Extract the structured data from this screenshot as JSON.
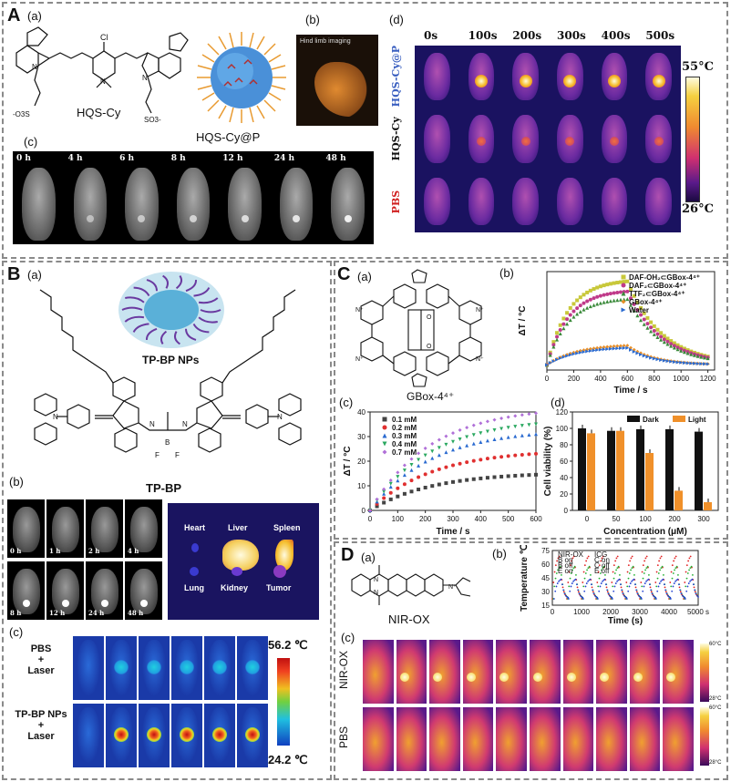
{
  "panelA": {
    "label": "A",
    "sub_a": "(a)",
    "sub_b": "(b)",
    "sub_c": "(c)",
    "sub_d": "(d)",
    "molecule_name": "HQS-Cy",
    "nanoparticle_name": "HQS-Cy@P",
    "cl": "Cl",
    "so3_left": "-O3S",
    "so3_right": "SO3-",
    "hind_limb": "Hind limb imaging",
    "c_times": [
      "0 h",
      "4 h",
      "6 h",
      "8 h",
      "12 h",
      "24 h",
      "48 h"
    ],
    "d_times": [
      "0s",
      "100s",
      "200s",
      "300s",
      "400s",
      "500s"
    ],
    "d_rows": [
      "HQS-Cy@P",
      "HQS-Cy",
      "PBS"
    ],
    "d_row_colors": [
      "#3a5fc0",
      "#111111",
      "#d02020"
    ],
    "d_scale_max": "55°C",
    "d_scale_min": "26°C"
  },
  "panelB": {
    "label": "B",
    "sub_a": "(a)",
    "sub_b": "(b)",
    "sub_c": "(c)",
    "np_name": "TP-BP NPs",
    "molecule_name": "TP-BP",
    "b_times": [
      "0 h",
      "1 h",
      "2 h",
      "4 h",
      "8 h",
      "12 h",
      "24 h",
      "48 h"
    ],
    "organs": [
      "Heart",
      "Liver",
      "Spleen",
      "Lung",
      "Kidney",
      "Tumor"
    ],
    "c_rows": [
      "PBS\n+\nLaser",
      "TP-BP NPs\n+\nLaser"
    ],
    "c_scale_max": "56.2 ℃",
    "c_scale_min": "24.2 ℃"
  },
  "panelC": {
    "label": "C",
    "sub_a": "(a)",
    "sub_b": "(b)",
    "sub_c": "(c)",
    "sub_d": "(d)",
    "molecule_name": "GBox-4⁴⁺",
    "chart_b": {
      "type": "scatter",
      "xlabel": "Time / s",
      "ylabel": "ΔT / °C",
      "xticks": [
        "0",
        "200",
        "400",
        "600",
        "800",
        "1000",
        "1200"
      ],
      "xlim": [
        0,
        1250
      ],
      "ylim": [
        -2,
        36
      ],
      "series": [
        {
          "name": "DAF-OH₂⊂GBox-4⁴⁺",
          "color": "#c8c83a",
          "marker": "square"
        },
        {
          "name": "DAF₂⊂GBox-4⁴⁺",
          "color": "#c03a8a",
          "marker": "circle"
        },
        {
          "name": "TTF₂⊂GBox-4⁴⁺",
          "color": "#3a8a3a",
          "marker": "triangle"
        },
        {
          "name": "GBox-4⁴⁺",
          "color": "#e8902a",
          "marker": "diamond"
        },
        {
          "name": "Water",
          "color": "#2a6ad0",
          "marker": "triangle-right"
        }
      ]
    },
    "chart_c": {
      "type": "scatter",
      "xlabel": "Time / s",
      "ylabel": "ΔT / °C",
      "xticks": [
        "0",
        "100",
        "200",
        "300",
        "400",
        "500",
        "600"
      ],
      "yticks": [
        "0",
        "10",
        "20",
        "30",
        "40"
      ],
      "xlim": [
        0,
        600
      ],
      "ylim": [
        0,
        40
      ],
      "series": [
        {
          "name": "0.1 mM",
          "color": "#444444",
          "marker": "square",
          "final": 14.5
        },
        {
          "name": "0.2 mM",
          "color": "#e03030",
          "marker": "circle",
          "final": 23
        },
        {
          "name": "0.3 mM",
          "color": "#2a6ad0",
          "marker": "triangle",
          "final": 31
        },
        {
          "name": "0.4 mM",
          "color": "#2aa860",
          "marker": "triangle-down",
          "final": 35
        },
        {
          "name": "0.7 mM",
          "color": "#b070d8",
          "marker": "diamond",
          "final": 39.5
        }
      ]
    },
    "chart_d": {
      "type": "bar",
      "xlabel": "Concentration (μM)",
      "ylabel": "Cell viability (%)",
      "categories": [
        "0",
        "50",
        "100",
        "200",
        "300"
      ],
      "yticks": [
        "0",
        "20",
        "40",
        "60",
        "80",
        "100",
        "120"
      ],
      "ylim": [
        0,
        120
      ],
      "series": [
        {
          "name": "Dark",
          "color": "#111111",
          "values": [
            100,
            97,
            99,
            99,
            96
          ]
        },
        {
          "name": "Light",
          "color": "#f0902a",
          "values": [
            94,
            97,
            70,
            24,
            10
          ]
        }
      ]
    }
  },
  "panelD": {
    "label": "D",
    "sub_a": "(a)",
    "sub_b": "(b)",
    "sub_c": "(c)",
    "molecule_name": "NIR-OX",
    "chart_b": {
      "type": "line",
      "xlabel": "Time (s)",
      "ylabel": "Temperature ℃",
      "xticks": [
        "0",
        "1000",
        "2000",
        "3000",
        "4000",
        "5000 s"
      ],
      "yticks": [
        "15",
        "30",
        "45",
        "60",
        "75"
      ],
      "xlim": [
        0,
        5000
      ],
      "ylim": [
        15,
        75
      ],
      "legend": [
        "NIR-OX",
        "ICG",
        "B on",
        "C on",
        "B off",
        "C off",
        "E on",
        "E off"
      ],
      "cycles": 10,
      "peak_red": 72,
      "peak_green": 60,
      "peak_blue": 45
    },
    "c_rows": [
      "NIR-OX",
      "PBS"
    ],
    "c_scale_max": "60°C",
    "c_scale_min": "28°C"
  }
}
